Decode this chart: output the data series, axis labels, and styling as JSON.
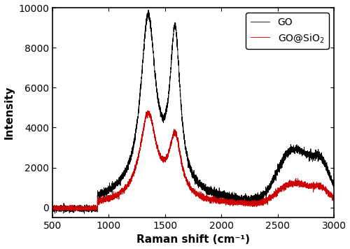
{
  "title": "",
  "xlabel": "Raman shift (cm⁻¹)",
  "ylabel": "Intensity",
  "xlim": [
    500,
    3000
  ],
  "ylim": [
    -500,
    10000
  ],
  "yticks": [
    0,
    2000,
    4000,
    6000,
    8000,
    10000
  ],
  "xticks": [
    500,
    1000,
    1500,
    2000,
    2500,
    3000
  ],
  "go_color": "#000000",
  "go_sio2_color": "#cc0000",
  "legend_labels": [
    "GO",
    "GO@SiO$_2$"
  ],
  "linewidth": 0.6,
  "seed": 17,
  "noise_scale_go": 90,
  "noise_scale_sio2": 65
}
